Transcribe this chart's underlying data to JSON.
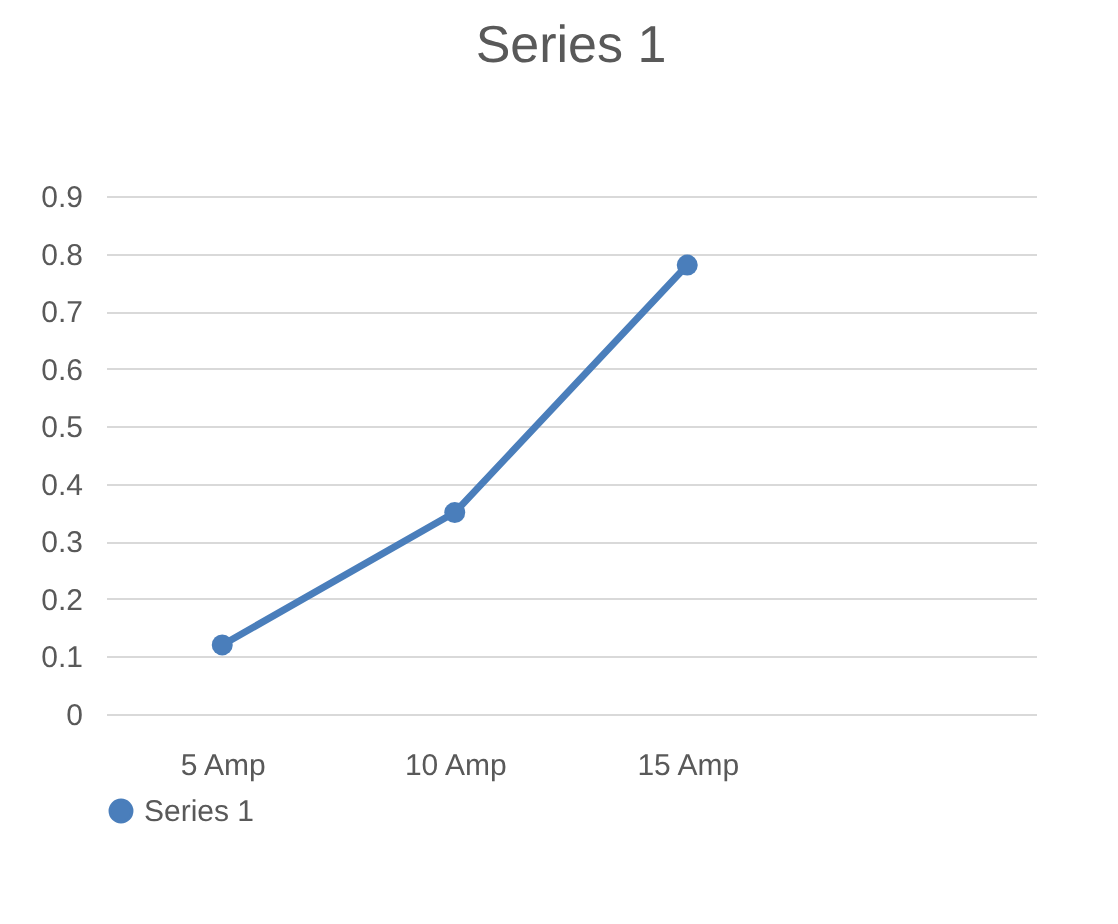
{
  "chart_data": {
    "type": "line",
    "title": "Series 1",
    "categories": [
      "5 Amp",
      "10 Amp",
      "15 Amp",
      null
    ],
    "series": [
      {
        "name": "Series 1",
        "color": "#4a7ebb",
        "values": [
          0.12,
          0.35,
          0.78,
          null
        ]
      }
    ],
    "ylim": [
      0,
      0.9
    ],
    "yticks": [
      0,
      0.1,
      0.2,
      0.3,
      0.4,
      0.5,
      0.6,
      0.7,
      0.8,
      0.9
    ],
    "grid": "y",
    "legend": "bottom",
    "marker": "circle",
    "line_style": "solid"
  }
}
